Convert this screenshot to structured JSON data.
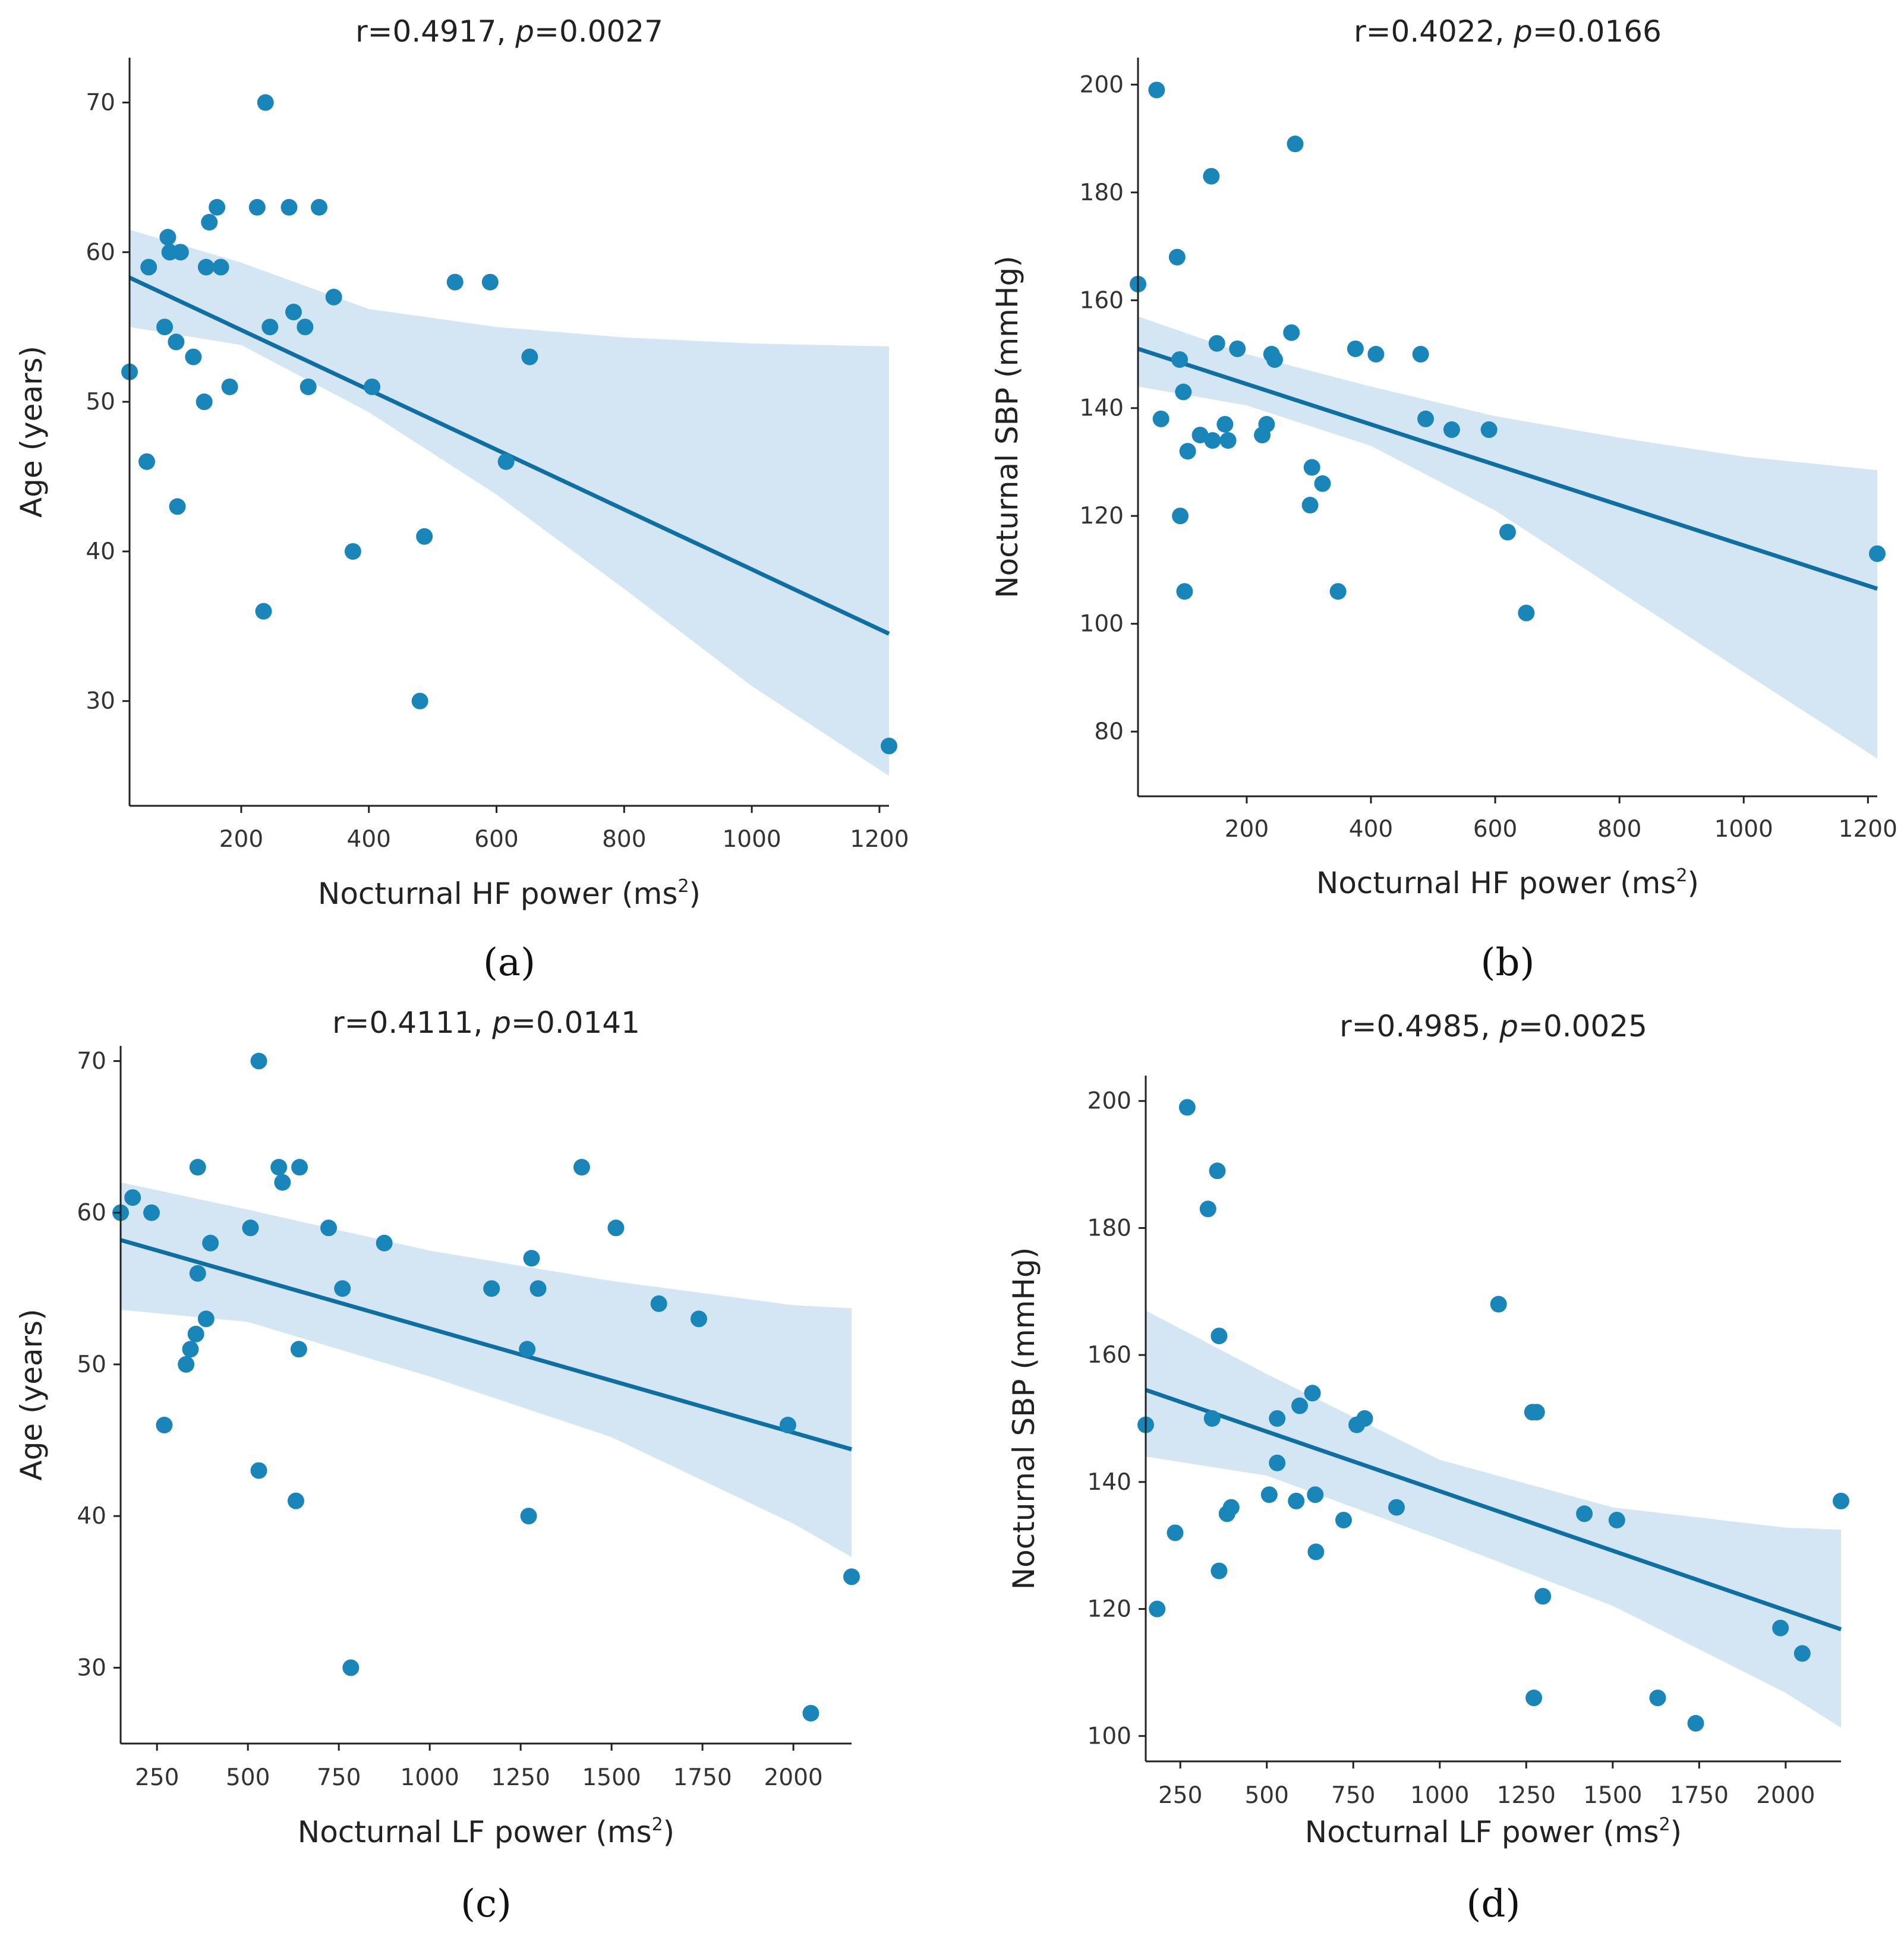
{
  "colors": {
    "points": "#1a85b8",
    "line": "#0f6fa3",
    "band": "#d4e6f3",
    "axis": "#222222"
  },
  "chart_data": [
    {
      "id": "a",
      "type": "scatter",
      "panel_label": "(a)",
      "title_prefix": "r=0.4917, ",
      "title_p": "p",
      "title_suffix": "=0.0027",
      "xlabel": "Nocturnal HF power (ms",
      "xlabel_sup": "2",
      "xlabel_end": ")",
      "ylabel": "Age (years)",
      "xlim": [
        25,
        1215
      ],
      "ylim": [
        23,
        73
      ],
      "xticks": [
        200,
        400,
        600,
        800,
        1000,
        1200
      ],
      "yticks": [
        30,
        40,
        50,
        60,
        70
      ],
      "points": [
        [
          25,
          52
        ],
        [
          55,
          59
        ],
        [
          52,
          46
        ],
        [
          80,
          55
        ],
        [
          85,
          61
        ],
        [
          88,
          60
        ],
        [
          98,
          54
        ],
        [
          100,
          43
        ],
        [
          105,
          60
        ],
        [
          125,
          53
        ],
        [
          142,
          50
        ],
        [
          145,
          59
        ],
        [
          150,
          62
        ],
        [
          162,
          63
        ],
        [
          168,
          59
        ],
        [
          182,
          51
        ],
        [
          225,
          63
        ],
        [
          235,
          36
        ],
        [
          238,
          70
        ],
        [
          245,
          55
        ],
        [
          275,
          63
        ],
        [
          282,
          56
        ],
        [
          300,
          55
        ],
        [
          305,
          51
        ],
        [
          322,
          63
        ],
        [
          345,
          57
        ],
        [
          375,
          40
        ],
        [
          405,
          51
        ],
        [
          480,
          30
        ],
        [
          487,
          41
        ],
        [
          535,
          58
        ],
        [
          590,
          58
        ],
        [
          615,
          46
        ],
        [
          652,
          53
        ],
        [
          1215,
          27
        ]
      ],
      "fit": {
        "x": [
          25,
          1215
        ],
        "y": [
          58.3,
          34.5
        ]
      },
      "ci_upper": [
        [
          25,
          61.5
        ],
        [
          200,
          59.3
        ],
        [
          400,
          56.2
        ],
        [
          600,
          55.0
        ],
        [
          800,
          54.3
        ],
        [
          1000,
          53.9
        ],
        [
          1215,
          53.7
        ]
      ],
      "ci_lower": [
        [
          25,
          55.0
        ],
        [
          200,
          53.8
        ],
        [
          400,
          49.3
        ],
        [
          600,
          43.8
        ],
        [
          800,
          37.5
        ],
        [
          1000,
          31.0
        ],
        [
          1215,
          25.0
        ]
      ]
    },
    {
      "id": "b",
      "type": "scatter",
      "panel_label": "(b)",
      "title_prefix": "r=0.4022, ",
      "title_p": "p",
      "title_suffix": "=0.0166",
      "xlabel": "Nocturnal HF power (ms",
      "xlabel_sup": "2",
      "xlabel_end": ")",
      "ylabel": "Nocturnal SBP (mmHg)",
      "xlim": [
        25,
        1215
      ],
      "ylim": [
        68,
        205
      ],
      "xticks": [
        200,
        400,
        600,
        800,
        1000,
        1200
      ],
      "yticks": [
        80,
        100,
        120,
        140,
        160,
        180,
        200
      ],
      "points": [
        [
          25,
          163
        ],
        [
          55,
          199
        ],
        [
          62,
          138
        ],
        [
          88,
          168
        ],
        [
          92,
          149
        ],
        [
          93,
          120
        ],
        [
          98,
          143
        ],
        [
          100,
          106
        ],
        [
          105,
          132
        ],
        [
          125,
          135
        ],
        [
          143,
          183
        ],
        [
          145,
          134
        ],
        [
          152,
          152
        ],
        [
          165,
          137
        ],
        [
          170,
          134
        ],
        [
          185,
          151
        ],
        [
          225,
          135
        ],
        [
          232,
          137
        ],
        [
          240,
          150
        ],
        [
          245,
          149
        ],
        [
          272,
          154
        ],
        [
          278,
          189
        ],
        [
          302,
          122
        ],
        [
          305,
          129
        ],
        [
          322,
          126
        ],
        [
          347,
          106
        ],
        [
          375,
          151
        ],
        [
          408,
          150
        ],
        [
          480,
          150
        ],
        [
          488,
          138
        ],
        [
          530,
          136
        ],
        [
          590,
          136
        ],
        [
          620,
          117
        ],
        [
          650,
          102
        ],
        [
          1215,
          113
        ]
      ],
      "fit": {
        "x": [
          25,
          1215
        ],
        "y": [
          151,
          106.5
        ]
      },
      "ci_upper": [
        [
          25,
          157
        ],
        [
          200,
          150
        ],
        [
          400,
          144
        ],
        [
          600,
          138.5
        ],
        [
          800,
          134.5
        ],
        [
          1000,
          131
        ],
        [
          1215,
          128.5
        ]
      ],
      "ci_lower": [
        [
          25,
          144
        ],
        [
          200,
          140.5
        ],
        [
          400,
          133
        ],
        [
          600,
          121
        ],
        [
          800,
          106
        ],
        [
          1000,
          91
        ],
        [
          1215,
          75
        ]
      ]
    },
    {
      "id": "c",
      "type": "scatter",
      "panel_label": "(c)",
      "title_prefix": "r=0.4111, ",
      "title_p": "p",
      "title_suffix": "=0.0141",
      "xlabel": "Nocturnal LF power (ms",
      "xlabel_sup": "2",
      "xlabel_end": ")",
      "ylabel": "Age (years)",
      "xlim": [
        150,
        2160
      ],
      "ylim": [
        25,
        71
      ],
      "xticks": [
        250,
        500,
        750,
        1000,
        1250,
        1500,
        1750,
        2000
      ],
      "yticks": [
        30,
        40,
        50,
        60,
        70
      ],
      "points": [
        [
          150,
          60
        ],
        [
          183,
          61
        ],
        [
          235,
          60
        ],
        [
          270,
          46
        ],
        [
          330,
          50
        ],
        [
          342,
          51
        ],
        [
          357,
          52
        ],
        [
          362,
          56
        ],
        [
          362,
          63
        ],
        [
          385,
          53
        ],
        [
          397,
          58
        ],
        [
          507,
          59
        ],
        [
          530,
          70
        ],
        [
          530,
          43
        ],
        [
          585,
          63
        ],
        [
          595,
          62
        ],
        [
          632,
          41
        ],
        [
          640,
          51
        ],
        [
          642,
          63
        ],
        [
          722,
          59
        ],
        [
          760,
          55
        ],
        [
          783,
          30
        ],
        [
          875,
          58
        ],
        [
          1170,
          55
        ],
        [
          1268,
          51
        ],
        [
          1272,
          40
        ],
        [
          1280,
          57
        ],
        [
          1298,
          55
        ],
        [
          1418,
          63
        ],
        [
          1512,
          59
        ],
        [
          1630,
          54
        ],
        [
          1740,
          53
        ],
        [
          1985,
          46
        ],
        [
          2048,
          27
        ],
        [
          2160,
          36
        ]
      ],
      "fit": {
        "x": [
          150,
          2160
        ],
        "y": [
          58.2,
          44.4
        ]
      },
      "ci_upper": [
        [
          150,
          62.0
        ],
        [
          500,
          60.2
        ],
        [
          1000,
          57.5
        ],
        [
          1500,
          55.5
        ],
        [
          2000,
          53.9
        ],
        [
          2160,
          53.7
        ]
      ],
      "ci_lower": [
        [
          150,
          53.6
        ],
        [
          500,
          52.8
        ],
        [
          1000,
          49.2
        ],
        [
          1500,
          45.2
        ],
        [
          2000,
          39.5
        ],
        [
          2160,
          37.3
        ]
      ]
    },
    {
      "id": "d",
      "type": "scatter",
      "panel_label": "(d)",
      "title_prefix": "r=0.4985, ",
      "title_p": "p",
      "title_suffix": "=0.0025",
      "xlabel": "Nocturnal LF power (ms",
      "xlabel_sup": "2",
      "xlabel_end": ")",
      "ylabel": "Nocturnal SBP (mmHg)",
      "xlim": [
        150,
        2160
      ],
      "ylim": [
        96,
        204
      ],
      "xticks": [
        250,
        500,
        750,
        1000,
        1250,
        1500,
        1750,
        2000
      ],
      "yticks": [
        100,
        120,
        140,
        160,
        180,
        200
      ],
      "points": [
        [
          150,
          149
        ],
        [
          183,
          120
        ],
        [
          235,
          132
        ],
        [
          270,
          199
        ],
        [
          330,
          183
        ],
        [
          342,
          150
        ],
        [
          357,
          189
        ],
        [
          362,
          163
        ],
        [
          362,
          126
        ],
        [
          385,
          135
        ],
        [
          397,
          136
        ],
        [
          507,
          138
        ],
        [
          530,
          143
        ],
        [
          530,
          150
        ],
        [
          585,
          137
        ],
        [
          595,
          152
        ],
        [
          632,
          154
        ],
        [
          640,
          138
        ],
        [
          642,
          129
        ],
        [
          722,
          134
        ],
        [
          760,
          149
        ],
        [
          783,
          150
        ],
        [
          875,
          136
        ],
        [
          1170,
          168
        ],
        [
          1268,
          151
        ],
        [
          1272,
          106
        ],
        [
          1280,
          151
        ],
        [
          1298,
          122
        ],
        [
          1418,
          135
        ],
        [
          1512,
          134
        ],
        [
          1630,
          106
        ],
        [
          1740,
          102
        ],
        [
          1985,
          117
        ],
        [
          2048,
          113
        ],
        [
          2160,
          137
        ]
      ],
      "fit": {
        "x": [
          150,
          2160
        ],
        "y": [
          154.5,
          116.8
        ]
      },
      "ci_upper": [
        [
          150,
          167
        ],
        [
          500,
          157
        ],
        [
          1000,
          143.5
        ],
        [
          1500,
          136
        ],
        [
          2000,
          132.8
        ],
        [
          2160,
          132.5
        ]
      ],
      "ci_lower": [
        [
          150,
          144
        ],
        [
          500,
          141
        ],
        [
          1000,
          131
        ],
        [
          1500,
          120.5
        ],
        [
          2000,
          106.8
        ],
        [
          2160,
          101.3
        ]
      ]
    }
  ]
}
